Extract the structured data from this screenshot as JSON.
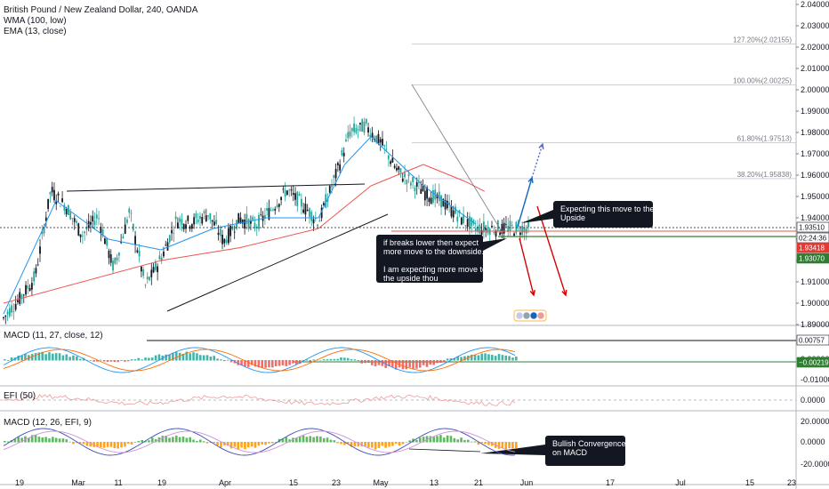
{
  "legend": {
    "title": "British Pound / New Zealand Dollar, 240, OANDA",
    "wma": "WMA (100, low)",
    "ema": "EMA (13, close)"
  },
  "panes": {
    "macd1_label": "MACD (11, 27, close, 12)",
    "efi_label": "EFI (50)",
    "macd2_label": "MACD (12, 26, EFI, 9)"
  },
  "annotations": {
    "upside": [
      "Expecting this move to the",
      "Upside"
    ],
    "downside": [
      "if breaks lower then expect",
      "more move to the downside.",
      "",
      "I am expecting more move to",
      "the upside thou"
    ],
    "convergence": [
      "Bullish Convergence",
      "on MACD"
    ]
  },
  "fib": [
    {
      "label": "127.20%(2.02155)",
      "value": 2.02155
    },
    {
      "label": "100.00%(2.00225)",
      "value": 2.00225
    },
    {
      "label": "61.80%(1.97513)",
      "value": 1.97513
    },
    {
      "label": "38.20%(1.95838)",
      "value": 1.95838
    }
  ],
  "price_tags": [
    {
      "label": "1.93510",
      "bg": "#ffffff",
      "fg": "#131722",
      "border": "#131722"
    },
    {
      "label": "02:24:36",
      "bg": "#ffffff",
      "fg": "#131722",
      "border": "#131722"
    },
    {
      "label": "1.93418",
      "bg": "#e53935",
      "fg": "#ffffff",
      "border": "#e53935"
    },
    {
      "label": "1.93070",
      "bg": "#2e7d32",
      "fg": "#ffffff",
      "border": "#2e7d32"
    }
  ],
  "macd1_tags": [
    {
      "label": "0.00757",
      "bg": "#ffffff",
      "fg": "#131722",
      "border": "#131722"
    },
    {
      "label": "−0.00219",
      "bg": "#2e7d32",
      "fg": "#ffffff",
      "border": "#2e7d32"
    }
  ],
  "colors": {
    "up": "#26a69a",
    "down": "#131722",
    "wma": "#ef5350",
    "ema": "#2196f3",
    "macd_line": "#2196f3",
    "signal_line": "#ff6d00",
    "hist_up": "#26a69a",
    "hist_down": "#ef5350",
    "efi": "#ef9a9a",
    "macd2_hist_up": "#4caf50",
    "macd2_hist_down": "#ff9800",
    "macd2_line": "#3f51b5",
    "macd2_signal": "#ce93d8",
    "arrow_up": "#1565c0",
    "arrow_down": "#d50000",
    "note_bg": "#131722",
    "support": "#2e7d32"
  },
  "chart_data": [
    {
      "type": "candlestick",
      "title": "British Pound / New Zealand Dollar, 240, OANDA",
      "series": [
        {
          "name": "WMA (100, low)"
        },
        {
          "name": "EMA (13, close)"
        }
      ],
      "x_ticks": [
        "19",
        "Mar",
        "11",
        "19",
        "Apr",
        "15",
        "23",
        "May",
        "13",
        "21",
        "Jun",
        "17",
        "Jul",
        "15",
        "23"
      ],
      "y_ticks": [
        "2.04000",
        "2.03000",
        "2.02000",
        "2.01000",
        "2.00000",
        "1.99000",
        "1.98000",
        "1.97000",
        "1.96000",
        "1.95000",
        "1.94000",
        "1.93000",
        "1.92000",
        "1.91000",
        "1.90000",
        "1.89000"
      ],
      "ylim": [
        1.89,
        2.04
      ],
      "close_path": [
        [
          0,
          1.893
        ],
        [
          0.03,
          1.902
        ],
        [
          0.06,
          1.912
        ],
        [
          0.09,
          1.953
        ],
        [
          0.12,
          1.945
        ],
        [
          0.15,
          1.932
        ],
        [
          0.18,
          1.941
        ],
        [
          0.21,
          1.916
        ],
        [
          0.24,
          1.943
        ],
        [
          0.27,
          1.908
        ],
        [
          0.3,
          1.921
        ],
        [
          0.33,
          1.939
        ],
        [
          0.36,
          1.938
        ],
        [
          0.39,
          1.942
        ],
        [
          0.42,
          1.929
        ],
        [
          0.45,
          1.94
        ],
        [
          0.48,
          1.936
        ],
        [
          0.51,
          1.944
        ],
        [
          0.54,
          1.953
        ],
        [
          0.57,
          1.946
        ],
        [
          0.6,
          1.938
        ],
        [
          0.63,
          1.958
        ],
        [
          0.66,
          1.98
        ],
        [
          0.69,
          1.983
        ],
        [
          0.72,
          1.975
        ],
        [
          0.75,
          1.962
        ],
        [
          0.78,
          1.956
        ],
        [
          0.81,
          1.951
        ],
        [
          0.84,
          1.947
        ],
        [
          0.87,
          1.94
        ],
        [
          0.9,
          1.935
        ],
        [
          1.0,
          1.935
        ]
      ],
      "wma_path": [
        [
          0,
          1.9
        ],
        [
          0.15,
          1.91
        ],
        [
          0.3,
          1.92
        ],
        [
          0.45,
          1.926
        ],
        [
          0.6,
          1.935
        ],
        [
          0.7,
          1.955
        ],
        [
          0.8,
          1.965
        ],
        [
          0.88,
          1.957
        ],
        [
          0.92,
          1.952
        ]
      ],
      "ema_path": [
        [
          0,
          1.895
        ],
        [
          0.1,
          1.948
        ],
        [
          0.2,
          1.93
        ],
        [
          0.3,
          1.925
        ],
        [
          0.4,
          1.935
        ],
        [
          0.5,
          1.94
        ],
        [
          0.6,
          1.94
        ],
        [
          0.65,
          1.965
        ],
        [
          0.7,
          1.978
        ],
        [
          0.8,
          1.955
        ],
        [
          0.9,
          1.937
        ]
      ]
    },
    {
      "type": "bar",
      "title": "MACD (11, 27, close, 12)",
      "y_ticks": [
        "0.01000",
        "0.00000",
        "-0.01000"
      ],
      "ylim": [
        -0.012,
        0.012
      ]
    },
    {
      "type": "line",
      "title": "EFI (50)",
      "y_ticks": [
        "0.0000"
      ]
    },
    {
      "type": "bar",
      "title": "MACD (12, 26, EFI, 9)",
      "y_ticks": [
        "20.0000",
        "0.0000",
        "-20.0000"
      ],
      "ylim": [
        -25,
        25
      ]
    }
  ]
}
